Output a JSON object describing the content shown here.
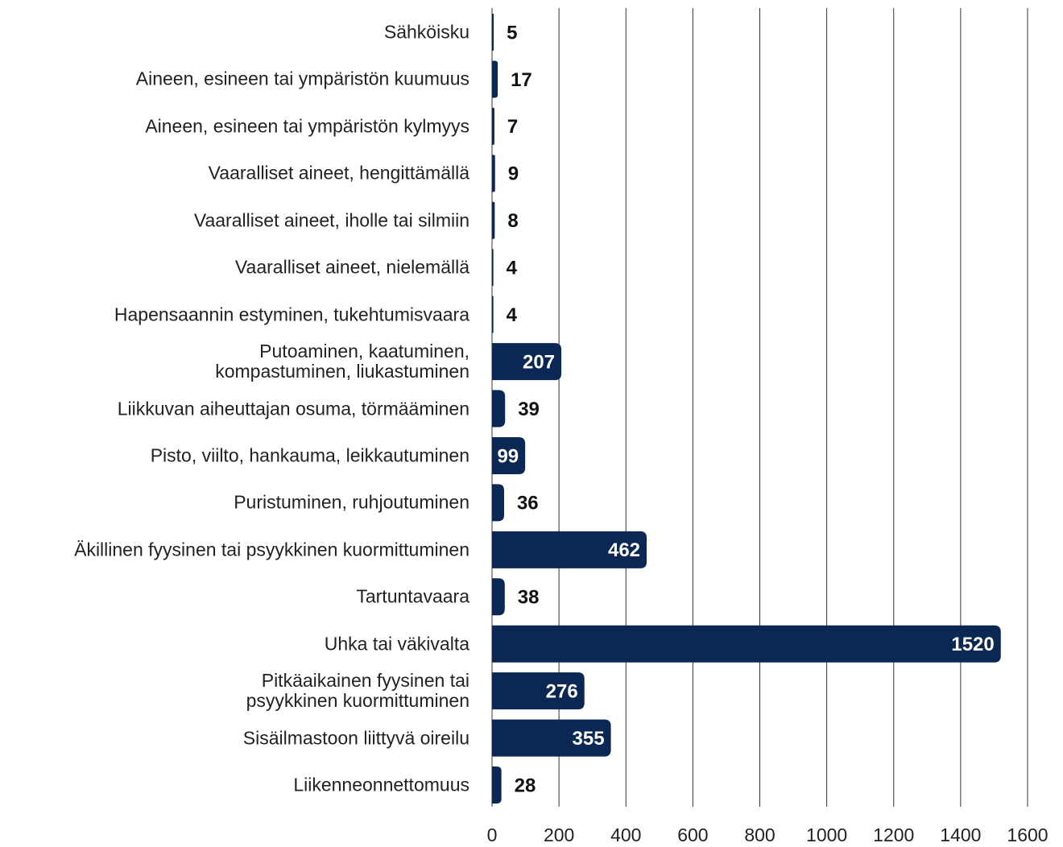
{
  "chart_data": {
    "type": "bar",
    "orientation": "horizontal",
    "categories": [
      "Sähköisku",
      "Aineen, esineen tai ympäristön kuumuus",
      "Aineen, esineen tai ympäristön kylmyys",
      "Vaaralliset aineet, hengittämällä",
      "Vaaralliset aineet, iholle tai silmiin",
      "Vaaralliset aineet, nielemällä",
      "Hapensaannin estyminen, tukehtumisvaara",
      "Putoaminen, kaatuminen,\nkompastuminen, liukastuminen",
      "Liikkuvan aiheuttajan osuma, törmääminen",
      "Pisto, viilto, hankauma, leikkautuminen",
      "Puristuminen, ruhjoutuminen",
      "Äkillinen fyysinen tai psyykkinen kuormittuminen",
      "Tartuntavaara",
      "Uhka tai väkivalta",
      "Pitkäaikainen fyysinen tai\npsyykkinen kuormittuminen",
      "Sisäilmastoon liittyvä oireilu",
      "Liikenneonnettomuus"
    ],
    "values": [
      5,
      17,
      7,
      9,
      8,
      4,
      4,
      207,
      39,
      99,
      36,
      462,
      38,
      1520,
      276,
      355,
      28
    ],
    "color": "#0b2753",
    "xlim": [
      0,
      1600
    ],
    "xticks": [
      0,
      200,
      400,
      600,
      800,
      1000,
      1200,
      1400,
      1600
    ],
    "grid": true
  }
}
